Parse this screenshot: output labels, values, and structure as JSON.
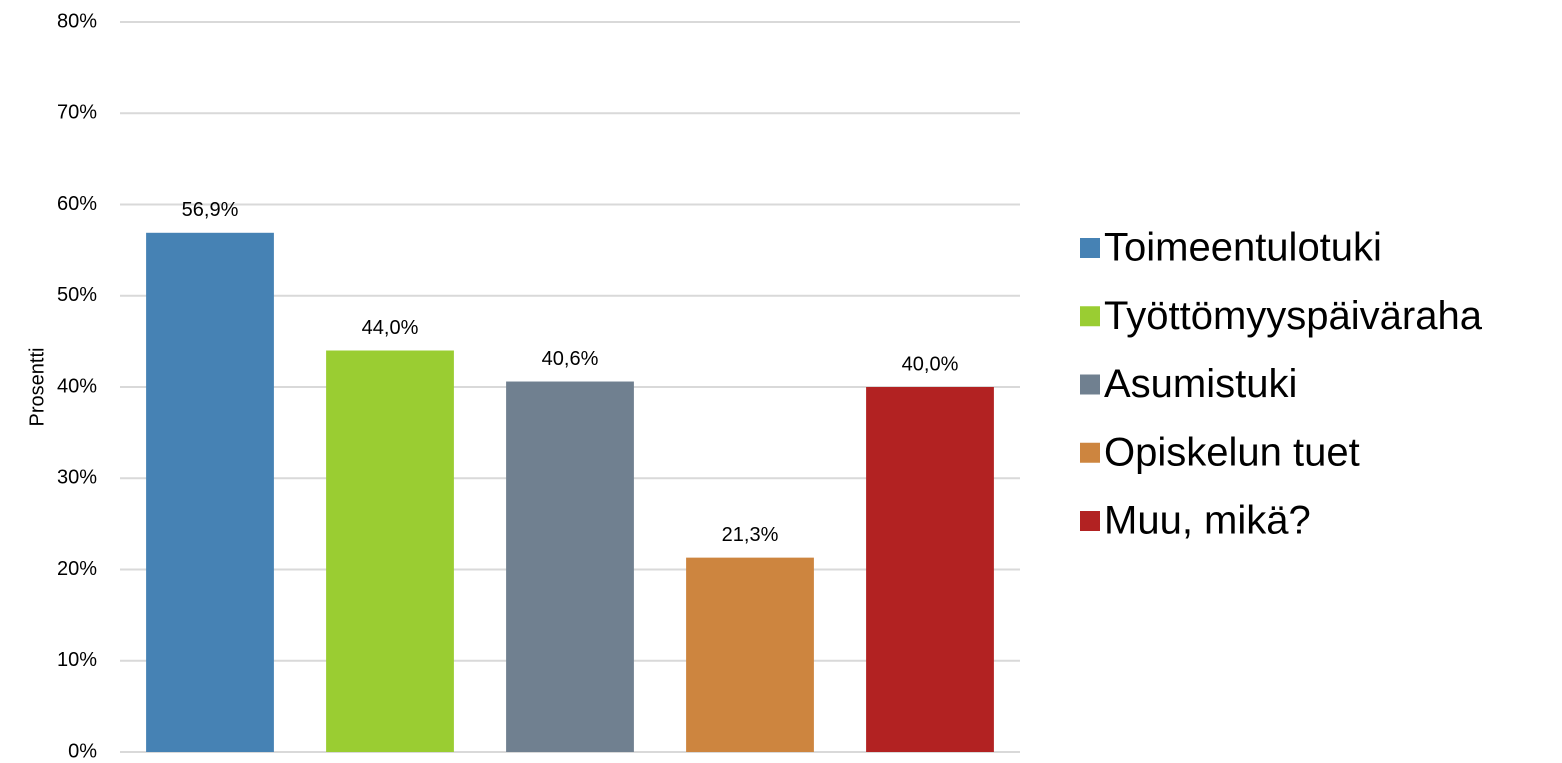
{
  "chart_data": {
    "type": "bar",
    "y_label": "Prosentti",
    "categories": [
      "Toimeentulotuki",
      "Työttömyyspäiväraha",
      "Asumistuki",
      "Opiskelun tuet",
      "Muu, mikä?"
    ],
    "values": [
      56.9,
      44.0,
      40.6,
      21.3,
      40.0
    ],
    "value_labels": [
      "56,9%",
      "44,0%",
      "40,6%",
      "21,3%",
      "40,0%"
    ],
    "colors": [
      "#4682b4",
      "#9acd32",
      "#708090",
      "#cd853f",
      "#b22222"
    ],
    "ylim": [
      0,
      80
    ],
    "yticks": [
      {
        "value": 0,
        "label": "0%"
      },
      {
        "value": 10,
        "label": "10%"
      },
      {
        "value": 20,
        "label": "20%"
      },
      {
        "value": 30,
        "label": "30%"
      },
      {
        "value": 40,
        "label": "40%"
      },
      {
        "value": 50,
        "label": "50%"
      },
      {
        "value": 60,
        "label": "60%"
      },
      {
        "value": 70,
        "label": "70%"
      },
      {
        "value": 80,
        "label": "80%"
      }
    ],
    "grid": true,
    "legend": "right"
  }
}
